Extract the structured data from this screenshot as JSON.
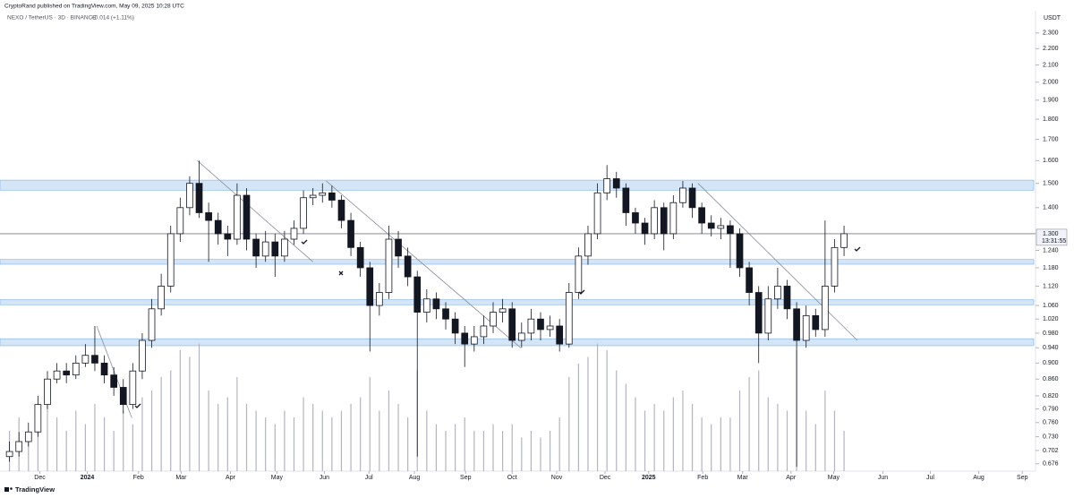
{
  "header": {
    "byline": "CryptoRand published on TradingView.com, May 09, 2025 10:28 UTC",
    "symbol": "NEXO / TetherUS · 3D · BINANCE",
    "change": "+0.014 (+1.11%)",
    "brand": "TradingView"
  },
  "chart_data": {
    "type": "candlestick",
    "log_scale": true,
    "y_axis_label": "USDT",
    "up_color": "#ffffff",
    "down_color": "#131722",
    "edge_color": "#131722",
    "open": [
      0.69,
      0.7,
      0.72,
      0.74,
      0.8,
      0.86,
      0.88,
      0.87,
      0.9,
      0.92,
      0.9,
      0.87,
      0.84,
      0.8,
      0.88,
      0.96,
      1.05,
      1.12,
      1.3,
      1.4,
      1.5,
      1.38,
      1.35,
      1.3,
      1.28,
      1.45,
      1.28,
      1.22,
      1.27,
      1.22,
      1.28,
      1.32,
      1.44,
      1.45,
      1.46,
      1.43,
      1.35,
      1.25,
      1.18,
      1.06,
      1.1,
      1.28,
      1.22,
      1.15,
      1.04,
      1.08,
      1.05,
      1.02,
      0.98,
      0.95,
      0.97,
      1.0,
      1.04,
      1.05,
      0.96,
      0.98,
      1.02,
      0.99,
      1.0,
      0.95,
      1.1,
      1.22,
      1.3,
      1.46,
      1.52,
      1.48,
      1.38,
      1.34,
      1.3,
      1.4,
      1.3,
      1.42,
      1.48,
      1.4,
      1.34,
      1.32,
      1.33,
      1.3,
      1.18,
      1.1,
      0.98,
      1.08,
      1.12,
      1.05,
      0.96,
      1.03,
      0.99,
      1.12,
      1.25
    ],
    "high": [
      0.72,
      0.74,
      0.76,
      0.82,
      0.88,
      0.9,
      0.9,
      0.92,
      0.95,
      1.0,
      0.92,
      0.89,
      0.86,
      0.9,
      0.98,
      1.08,
      1.16,
      1.33,
      1.44,
      1.53,
      1.6,
      1.42,
      1.38,
      1.33,
      1.5,
      1.48,
      1.3,
      1.31,
      1.3,
      1.31,
      1.35,
      1.47,
      1.48,
      1.5,
      1.49,
      1.45,
      1.38,
      1.27,
      1.2,
      1.13,
      1.33,
      1.31,
      1.25,
      1.17,
      1.11,
      1.1,
      1.07,
      1.04,
      1.0,
      1.0,
      1.03,
      1.07,
      1.08,
      1.07,
      1.01,
      1.05,
      1.04,
      1.03,
      1.02,
      1.13,
      1.25,
      1.33,
      1.5,
      1.58,
      1.55,
      1.5,
      1.4,
      1.36,
      1.43,
      1.42,
      1.45,
      1.51,
      1.5,
      1.42,
      1.37,
      1.36,
      1.35,
      1.32,
      1.2,
      1.12,
      1.12,
      1.18,
      1.14,
      1.07,
      1.06,
      1.05,
      1.35,
      1.28,
      1.33
    ],
    "low": [
      0.68,
      0.69,
      0.71,
      0.73,
      0.79,
      0.85,
      0.85,
      0.86,
      0.89,
      0.88,
      0.85,
      0.82,
      0.78,
      0.79,
      0.86,
      0.94,
      1.03,
      1.1,
      1.27,
      1.37,
      1.36,
      1.2,
      1.26,
      1.22,
      1.26,
      1.24,
      1.18,
      1.2,
      1.15,
      1.2,
      1.26,
      1.3,
      1.41,
      1.42,
      1.4,
      1.32,
      1.22,
      1.15,
      0.93,
      1.03,
      1.08,
      1.18,
      1.12,
      0.69,
      1.01,
      1.02,
      0.99,
      0.95,
      0.89,
      0.93,
      0.95,
      0.98,
      1.01,
      0.94,
      0.94,
      0.96,
      0.96,
      0.97,
      0.93,
      0.94,
      1.08,
      1.19,
      1.28,
      1.43,
      1.44,
      1.33,
      1.3,
      1.26,
      1.28,
      1.24,
      1.28,
      1.4,
      1.36,
      1.3,
      1.29,
      1.28,
      1.18,
      1.15,
      1.06,
      0.9,
      0.96,
      1.05,
      1.02,
      0.67,
      0.94,
      0.97,
      0.97,
      1.1,
      1.22
    ],
    "close": [
      0.7,
      0.72,
      0.74,
      0.8,
      0.86,
      0.88,
      0.87,
      0.9,
      0.92,
      0.9,
      0.87,
      0.84,
      0.8,
      0.88,
      0.96,
      1.05,
      1.12,
      1.3,
      1.4,
      1.5,
      1.38,
      1.35,
      1.3,
      1.28,
      1.45,
      1.28,
      1.22,
      1.27,
      1.22,
      1.28,
      1.32,
      1.44,
      1.45,
      1.46,
      1.43,
      1.35,
      1.25,
      1.18,
      1.06,
      1.1,
      1.28,
      1.22,
      1.15,
      1.04,
      1.08,
      1.05,
      1.02,
      0.98,
      0.95,
      0.97,
      1.0,
      1.04,
      1.05,
      0.96,
      0.98,
      1.02,
      0.99,
      1.0,
      0.95,
      1.1,
      1.22,
      1.3,
      1.46,
      1.52,
      1.48,
      1.38,
      1.34,
      1.3,
      1.4,
      1.3,
      1.42,
      1.48,
      1.4,
      1.34,
      1.32,
      1.33,
      1.3,
      1.18,
      1.1,
      0.98,
      1.08,
      1.12,
      1.05,
      0.96,
      1.03,
      0.99,
      1.12,
      1.25,
      1.3
    ],
    "volume": [
      30,
      40,
      25,
      35,
      55,
      40,
      30,
      45,
      35,
      50,
      40,
      30,
      45,
      35,
      55,
      60,
      70,
      75,
      90,
      85,
      95,
      60,
      50,
      55,
      70,
      50,
      45,
      40,
      35,
      45,
      40,
      55,
      50,
      45,
      40,
      45,
      50,
      55,
      70,
      45,
      60,
      50,
      40,
      75,
      45,
      35,
      30,
      35,
      40,
      30,
      30,
      35,
      30,
      35,
      25,
      30,
      25,
      30,
      40,
      70,
      80,
      85,
      95,
      90,
      75,
      65,
      55,
      45,
      50,
      45,
      55,
      60,
      50,
      40,
      35,
      40,
      40,
      60,
      70,
      75,
      55,
      50,
      45,
      90,
      45,
      35,
      60,
      45,
      30
    ],
    "volume_lim": [
      0,
      100
    ],
    "volume_color": "#b2b5be",
    "xlim": [
      -1,
      108
    ],
    "xticks": [
      {
        "value": 3.2,
        "label": "Dec"
      },
      {
        "value": 8.2,
        "label": "2024"
      },
      {
        "value": 13.6,
        "label": "Feb"
      },
      {
        "value": 18.1,
        "label": "Mar"
      },
      {
        "value": 23.3,
        "label": "Apr"
      },
      {
        "value": 28.2,
        "label": "May"
      },
      {
        "value": 33.2,
        "label": "Jun"
      },
      {
        "value": 37.9,
        "label": "Jul"
      },
      {
        "value": 42.7,
        "label": "Aug"
      },
      {
        "value": 48.1,
        "label": "Sep"
      },
      {
        "value": 53,
        "label": "Oct"
      },
      {
        "value": 57.7,
        "label": "Nov"
      },
      {
        "value": 62.8,
        "label": "Dec"
      },
      {
        "value": 67.4,
        "label": "2025"
      },
      {
        "value": 73.1,
        "label": "Feb"
      },
      {
        "value": 77.3,
        "label": "Mar"
      },
      {
        "value": 82.4,
        "label": "Apr"
      },
      {
        "value": 86.9,
        "label": "May"
      },
      {
        "value": 92.1,
        "label": "Jun"
      },
      {
        "value": 97.1,
        "label": "Jul"
      },
      {
        "value": 102.2,
        "label": "Aug"
      },
      {
        "value": 106.8,
        "label": "Sep"
      }
    ],
    "ylim": [
      0.662,
      2.45
    ],
    "yticks": [
      {
        "value": 2.3,
        "label": "2.300"
      },
      {
        "value": 2.2,
        "label": "2.200"
      },
      {
        "value": 2.1,
        "label": "2.100"
      },
      {
        "value": 2.0,
        "label": "2.000"
      },
      {
        "value": 1.9,
        "label": "1.900"
      },
      {
        "value": 1.8,
        "label": "1.800"
      },
      {
        "value": 1.7,
        "label": "1.700"
      },
      {
        "value": 1.6,
        "label": "1.600"
      },
      {
        "value": 1.5,
        "label": "1.500"
      },
      {
        "value": 1.4,
        "label": "1.400"
      },
      {
        "value": 1.24,
        "label": "1.240"
      },
      {
        "value": 1.18,
        "label": "1.180"
      },
      {
        "value": 1.12,
        "label": "1.120"
      },
      {
        "value": 1.06,
        "label": "1.060"
      },
      {
        "value": 1.02,
        "label": "1.020"
      },
      {
        "value": 0.98,
        "label": "0.980"
      },
      {
        "value": 0.94,
        "label": "0.940"
      },
      {
        "value": 0.9,
        "label": "0.900"
      },
      {
        "value": 0.86,
        "label": "0.860"
      },
      {
        "value": 0.82,
        "label": "0.820"
      },
      {
        "value": 0.79,
        "label": "0.790"
      },
      {
        "value": 0.76,
        "label": "0.760"
      },
      {
        "value": 0.73,
        "label": "0.730"
      },
      {
        "value": 0.702,
        "label": "0.702"
      },
      {
        "value": 0.676,
        "label": "0.676"
      }
    ],
    "current_price": {
      "value": 1.3,
      "label": "1.300",
      "countdown": "13:31:55"
    },
    "zones": [
      {
        "low": 1.475,
        "high": 1.51
      },
      {
        "low": 1.195,
        "high": 1.205
      },
      {
        "low": 1.065,
        "high": 1.075
      },
      {
        "low": 0.948,
        "high": 0.962
      }
    ],
    "zone_color": "#b7d3f2",
    "trendlines": [
      {
        "x": [
          19.8,
          32.0
        ],
        "y": [
          1.6,
          1.2
        ]
      },
      {
        "x": [
          33.4,
          53.9
        ],
        "y": [
          1.51,
          0.94
        ]
      },
      {
        "x": [
          9.2,
          12.9
        ],
        "y": [
          1.0,
          0.77
        ]
      },
      {
        "x": [
          72.6,
          89.4
        ],
        "y": [
          1.5,
          0.96
        ]
      }
    ]
  }
}
